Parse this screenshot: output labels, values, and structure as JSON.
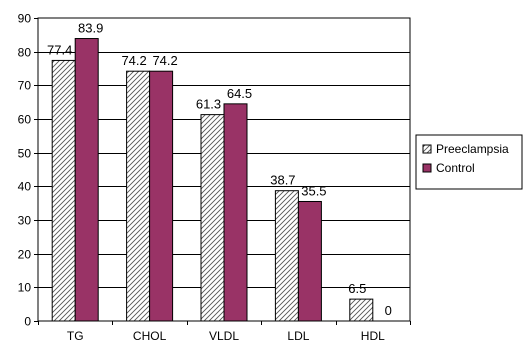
{
  "chart_data": {
    "type": "bar",
    "title": "",
    "xlabel": "",
    "ylabel": "",
    "categories": [
      "TG",
      "CHOL",
      "VLDL",
      "LDL",
      "HDL"
    ],
    "series": [
      {
        "name": "Preeclampsia",
        "values": [
          77.4,
          74.2,
          61.3,
          38.7,
          6.5
        ],
        "data_labels": [
          "77.4",
          "74.2",
          "61.3",
          "38.7",
          "6.5"
        ],
        "fill": "hatch",
        "color": "#ffffff"
      },
      {
        "name": "Control",
        "values": [
          83.9,
          74.2,
          64.5,
          35.5,
          0
        ],
        "data_labels": [
          "83.9",
          "74.2",
          "64.5",
          "35.5",
          "0"
        ],
        "fill": "solid",
        "color": "#993366"
      }
    ],
    "ylim": [
      0,
      90
    ],
    "yticks": [
      0,
      10,
      20,
      30,
      40,
      50,
      60,
      70,
      80,
      90
    ],
    "grid": true,
    "legend_position": "right"
  }
}
